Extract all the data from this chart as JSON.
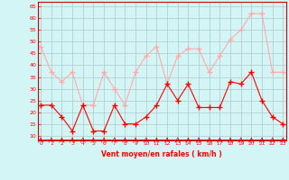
{
  "x": [
    0,
    1,
    2,
    3,
    4,
    5,
    6,
    7,
    8,
    9,
    10,
    11,
    12,
    13,
    14,
    15,
    16,
    17,
    18,
    19,
    20,
    21,
    22,
    23
  ],
  "avg_wind": [
    23,
    23,
    18,
    12,
    23,
    12,
    12,
    23,
    15,
    15,
    18,
    23,
    32,
    25,
    32,
    22,
    22,
    22,
    33,
    32,
    37,
    25,
    18,
    15
  ],
  "gust_wind": [
    48,
    37,
    33,
    37,
    23,
    23,
    37,
    30,
    23,
    37,
    44,
    48,
    32,
    44,
    47,
    47,
    37,
    44,
    51,
    55,
    62,
    62,
    37,
    37
  ],
  "avg_color": "#ff0000",
  "gust_color": "#ffaaaa",
  "bg_color": "#d4f5f5",
  "grid_color": "#b0c8c8",
  "xlabel": "Vent moyen/en rafales ( km/h )",
  "yticks": [
    10,
    15,
    20,
    25,
    30,
    35,
    40,
    45,
    50,
    55,
    60,
    65
  ],
  "ylim": [
    8,
    67
  ],
  "xlim": [
    -0.3,
    23.3
  ],
  "xticks": [
    0,
    1,
    2,
    3,
    4,
    5,
    6,
    7,
    8,
    9,
    10,
    11,
    12,
    13,
    14,
    15,
    16,
    17,
    18,
    19,
    20,
    21,
    22,
    23
  ]
}
